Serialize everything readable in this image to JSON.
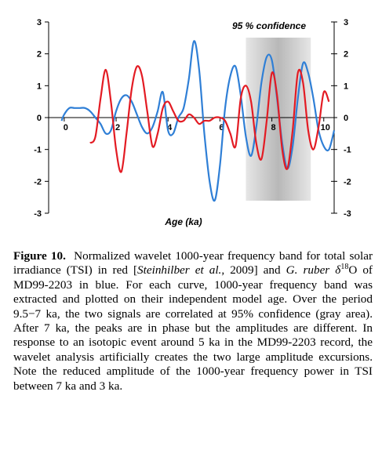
{
  "chart_data": {
    "type": "line",
    "xlabel": "Age (ka)",
    "ylabel": "",
    "xlim": [
      -0.6,
      10.4
    ],
    "ylim": [
      -3,
      3
    ],
    "x_ticks": [
      0,
      2,
      4,
      6,
      8,
      10
    ],
    "y_ticks_left": [
      3,
      2,
      1,
      0,
      -1,
      -2,
      -3
    ],
    "y_ticks_right": [
      3,
      2,
      1,
      0,
      -1,
      -2,
      -3
    ],
    "confidence_band": {
      "label": "95 % confidence",
      "x_range": [
        7,
        9.5
      ],
      "color": "#b8b8b8"
    },
    "grid": false,
    "series": [
      {
        "color": "#2f7fd6",
        "x": [
          -0.1,
          0.0,
          0.2,
          0.4,
          0.6,
          0.8,
          1.0,
          1.2,
          1.4,
          1.6,
          1.8,
          2.0,
          2.2,
          2.4,
          2.6,
          2.8,
          3.0,
          3.2,
          3.4,
          3.6,
          3.8,
          4.0,
          4.2,
          4.4,
          4.6,
          4.8,
          5.0,
          5.2,
          5.4,
          5.6,
          5.8,
          6.0,
          6.2,
          6.4,
          6.6,
          6.8,
          7.0,
          7.2,
          7.4,
          7.6,
          7.8,
          8.0,
          8.2,
          8.4,
          8.6,
          8.8,
          9.0,
          9.2,
          9.4,
          9.6,
          9.8,
          10.0,
          10.2,
          10.4
        ],
        "values": [
          -0.1,
          0.1,
          0.3,
          0.3,
          0.3,
          0.3,
          0.2,
          0.0,
          -0.2,
          -0.5,
          -0.4,
          0.2,
          0.6,
          0.7,
          0.5,
          0.1,
          -0.3,
          -0.5,
          -0.3,
          0.2,
          0.8,
          -0.4,
          -0.5,
          0.0,
          0.3,
          1.2,
          2.4,
          1.5,
          -0.5,
          -2.0,
          -2.6,
          -1.5,
          0.3,
          1.3,
          1.6,
          0.7,
          -0.6,
          -1.2,
          -0.3,
          1.1,
          1.9,
          1.8,
          0.6,
          -0.8,
          -1.6,
          -0.9,
          0.6,
          1.7,
          1.4,
          0.6,
          -0.4,
          -0.9,
          -1.0,
          -0.4
        ]
      },
      {
        "color": "#e31b23",
        "x": [
          1.0,
          1.2,
          1.4,
          1.6,
          1.8,
          2.0,
          2.2,
          2.4,
          2.6,
          2.8,
          3.0,
          3.2,
          3.4,
          3.6,
          3.8,
          4.0,
          4.2,
          4.4,
          4.6,
          4.8,
          5.0,
          5.2,
          5.4,
          5.6,
          5.8,
          6.0,
          6.2,
          6.4,
          6.6,
          6.8,
          7.0,
          7.2,
          7.4,
          7.6,
          7.8,
          8.0,
          8.2,
          8.4,
          8.6,
          8.8,
          9.0,
          9.2,
          9.4,
          9.6,
          9.8,
          10.0,
          10.2
        ],
        "values": [
          -0.8,
          -0.6,
          0.6,
          1.5,
          0.5,
          -1.0,
          -1.7,
          -0.5,
          0.9,
          1.6,
          1.3,
          0.2,
          -0.9,
          -0.5,
          0.3,
          0.5,
          0.2,
          -0.1,
          -0.1,
          0.1,
          0.0,
          -0.2,
          -0.1,
          -0.1,
          0.0,
          0.0,
          -0.1,
          -0.5,
          -0.9,
          0.6,
          1.0,
          0.5,
          -0.8,
          -1.3,
          -0.1,
          1.4,
          0.7,
          -1.0,
          -1.6,
          -0.4,
          1.4,
          1.1,
          -0.4,
          -1.0,
          -0.3,
          0.8,
          0.5
        ]
      }
    ]
  },
  "caption": {
    "label": "Figure 10.",
    "text_1": "Normalized wavelet 1000-year frequency band for total solar irradiance (TSI) in red [",
    "ref_1": "Steinhilber et al.",
    "text_2": ", 2009] and ",
    "species": "G. ruber",
    "delta": "δ",
    "isotope_mass": "18",
    "text_3": "O of MD99-2203 in blue. For each curve, 1000-year frequency band was extracted and plotted on their independent model age. Over the period 9.5−7 ka, the two signals are correlated at 95% confidence (gray area). After 7 ka, the peaks are in phase but the amplitudes are different. In response to an isotopic event around 5 ka in the MD99-2203 record, the wavelet analysis artificially creates the two large amplitude excursions. Note the reduced amplitude of the 1000-year frequency power in TSI between 7 ka and 3 ka."
  }
}
